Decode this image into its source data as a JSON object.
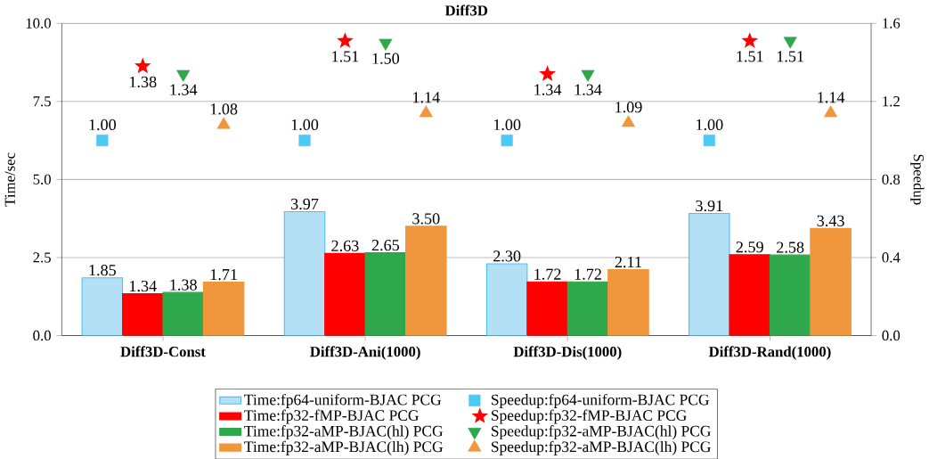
{
  "chart_data": {
    "type": "bar",
    "title": "Diff3D",
    "ylabel": "Time/sec",
    "y2label": "Speedup",
    "categories": [
      "Diff3D-Const",
      "Diff3D-Ani(1000)",
      "Diff3D-Dis(1000)",
      "Diff3D-Rand(1000)"
    ],
    "series": [
      {
        "name": "Time:fp64-uniform-BJAC PCG",
        "color": "#b3e0f5",
        "values": [
          1.85,
          3.97,
          2.3,
          3.91
        ],
        "value_labels": [
          "1.85",
          "3.97",
          "2.30",
          "3.91"
        ]
      },
      {
        "name": "Time:fp32-fMP-BJAC PCG",
        "color": "#ff0000",
        "values": [
          1.34,
          2.63,
          1.72,
          2.59
        ],
        "value_labels": [
          "1.34",
          "2.63",
          "1.72",
          "2.59"
        ]
      },
      {
        "name": "Time:fp32-aMP-BJAC(hl) PCG",
        "color": "#2ea84a",
        "values": [
          1.38,
          2.65,
          1.72,
          2.58
        ],
        "value_labels": [
          "1.38",
          "2.65",
          "1.72",
          "2.58"
        ]
      },
      {
        "name": "Time:fp32-aMP-BJAC(lh) PCG",
        "color": "#f0963c",
        "values": [
          1.71,
          3.5,
          2.11,
          3.43
        ],
        "value_labels": [
          "1.71",
          "3.50",
          "2.11",
          "3.43"
        ]
      },
      {
        "name": "Speedup:fp64-uniform-BJAC PCG",
        "type": "scatter",
        "axis": "y2",
        "marker": "square",
        "color": "#4dc9f6",
        "values": [
          1.0,
          1.0,
          1.0,
          1.0
        ],
        "value_labels": [
          "1.00",
          "1.00",
          "1.00",
          "1.00"
        ]
      },
      {
        "name": "Speedup:fp32-fMP-BJAC PCG",
        "type": "scatter",
        "axis": "y2",
        "marker": "star",
        "color": "#ff0000",
        "values": [
          1.38,
          1.51,
          1.34,
          1.51
        ],
        "value_labels": [
          "1.38",
          "1.51",
          "1.34",
          "1.51"
        ]
      },
      {
        "name": "Speedup:fp32-aMP-BJAC(hl) PCG",
        "type": "scatter",
        "axis": "y2",
        "marker": "triangle-down",
        "color": "#2ea84a",
        "values": [
          1.34,
          1.5,
          1.34,
          1.51
        ],
        "value_labels": [
          "1.34",
          "1.50",
          "1.34",
          "1.51"
        ]
      },
      {
        "name": "Speedup:fp32-aMP-BJAC(lh) PCG",
        "type": "scatter",
        "axis": "y2",
        "marker": "triangle",
        "color": "#f0963c",
        "values": [
          1.08,
          1.14,
          1.09,
          1.14
        ],
        "value_labels": [
          "1.08",
          "1.14",
          "1.09",
          "1.14"
        ]
      }
    ],
    "ylim": [
      0,
      10
    ],
    "yticks": [
      {
        "value": 0,
        "label": "0.0"
      },
      {
        "value": 2.5,
        "label": "2.5"
      },
      {
        "value": 5,
        "label": "5.0"
      },
      {
        "value": 7.5,
        "label": "7.5"
      },
      {
        "value": 10,
        "label": "10.0"
      }
    ],
    "y2lim": [
      0,
      1.6
    ],
    "y2ticks": [
      {
        "value": 0,
        "label": "0.0"
      },
      {
        "value": 0.4,
        "label": "0.4"
      },
      {
        "value": 0.8,
        "label": "0.8"
      },
      {
        "value": 1.2,
        "label": "1.2"
      },
      {
        "value": 1.6,
        "label": "1.6"
      }
    ],
    "grid": "y",
    "legend": "bottom"
  }
}
